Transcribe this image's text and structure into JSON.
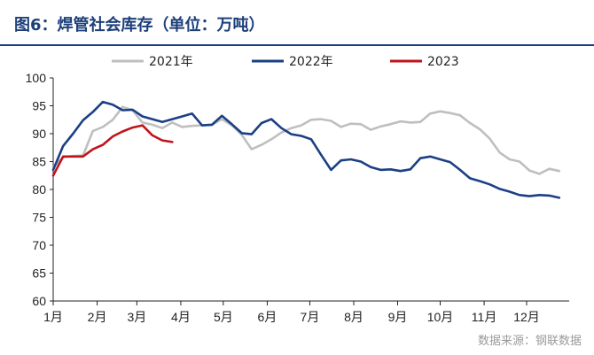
{
  "figure": {
    "title": "图6：焊管社会库存（单位：万吨）",
    "source": "数据来源：钢联数据"
  },
  "chart_data": {
    "type": "line",
    "title": "图6：焊管社会库存（单位：万吨）",
    "xlabel": "",
    "ylabel": "",
    "ylim": [
      60,
      100
    ],
    "yticks": [
      60,
      65,
      70,
      75,
      80,
      85,
      90,
      95,
      100
    ],
    "xlim": [
      0,
      52
    ],
    "xticks": [
      {
        "pos": 0,
        "label": "1月"
      },
      {
        "pos": 4.43,
        "label": "2月"
      },
      {
        "pos": 8.43,
        "label": "3月"
      },
      {
        "pos": 12.86,
        "label": "4月"
      },
      {
        "pos": 17.14,
        "label": "5月"
      },
      {
        "pos": 21.57,
        "label": "6月"
      },
      {
        "pos": 25.86,
        "label": "7月"
      },
      {
        "pos": 30.29,
        "label": "8月"
      },
      {
        "pos": 34.71,
        "label": "9月"
      },
      {
        "pos": 39.0,
        "label": "10月"
      },
      {
        "pos": 43.43,
        "label": "11月"
      },
      {
        "pos": 47.71,
        "label": "12月"
      }
    ],
    "grid": false,
    "legend_position": "top",
    "series": [
      {
        "name": "2021年",
        "color": "#bfbfbf",
        "x": [
          0,
          1,
          2,
          3,
          4,
          5,
          6,
          7,
          8,
          9,
          10,
          11,
          12,
          13,
          14,
          15,
          16,
          17,
          18,
          19,
          20,
          21,
          22,
          23,
          24,
          25,
          26,
          27,
          28,
          29,
          30,
          31,
          32,
          33,
          34,
          35,
          36,
          37,
          38,
          39,
          40,
          41,
          42,
          43,
          44,
          45,
          46,
          47,
          48,
          49,
          50,
          51
        ],
        "values": [
          84.0,
          85.8,
          86.0,
          86.1,
          90.5,
          91.2,
          92.5,
          94.8,
          94.2,
          92.0,
          91.6,
          91.0,
          92.0,
          91.2,
          91.4,
          91.5,
          91.6,
          92.6,
          91.5,
          89.8,
          87.2,
          88.0,
          89.0,
          90.2,
          91.0,
          91.5,
          92.5,
          92.6,
          92.3,
          91.2,
          91.8,
          91.7,
          90.7,
          91.3,
          91.7,
          92.2,
          92.0,
          92.1,
          93.6,
          94.0,
          93.7,
          93.3,
          91.9,
          90.8,
          89.1,
          86.6,
          85.4,
          85.0,
          83.4,
          82.8,
          83.7,
          83.3
        ]
      },
      {
        "name": "2022年",
        "color": "#1b3f86",
        "x": [
          0,
          1,
          2,
          3,
          4,
          5,
          6,
          7,
          8,
          9,
          10,
          11,
          12,
          13,
          14,
          15,
          16,
          17,
          18,
          19,
          20,
          21,
          22,
          23,
          24,
          25,
          26,
          27,
          28,
          29,
          30,
          31,
          32,
          33,
          34,
          35,
          36,
          37,
          38,
          39,
          40,
          41,
          42,
          43,
          44,
          45,
          46,
          47,
          48,
          49,
          50,
          51
        ],
        "values": [
          83.5,
          87.8,
          90.0,
          92.4,
          93.9,
          95.7,
          95.2,
          94.2,
          94.3,
          93.1,
          92.6,
          92.1,
          92.6,
          93.1,
          93.6,
          91.5,
          91.6,
          93.2,
          91.7,
          90.1,
          89.9,
          91.9,
          92.6,
          91.0,
          89.9,
          89.6,
          89.0,
          86.2,
          83.5,
          85.2,
          85.4,
          85.0,
          84.0,
          83.5,
          83.6,
          83.3,
          83.6,
          85.6,
          85.9,
          85.4,
          84.9,
          83.5,
          82.0,
          81.5,
          80.9,
          80.1,
          79.6,
          79.0,
          78.8,
          79.0,
          78.9,
          78.5
        ]
      },
      {
        "name": "2023",
        "color": "#c0141c",
        "x": [
          0,
          1,
          2,
          3,
          4,
          5,
          6,
          7,
          8,
          9,
          10,
          11,
          12
        ],
        "values": [
          82.5,
          85.9,
          85.9,
          85.9,
          87.2,
          88.0,
          89.5,
          90.4,
          91.1,
          91.5,
          89.7,
          88.8,
          88.5
        ]
      }
    ]
  }
}
